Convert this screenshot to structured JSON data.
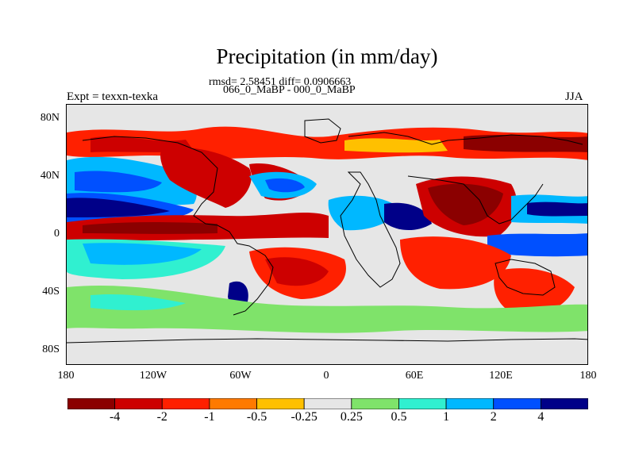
{
  "header": {
    "title": "Precipitation (in mm/day)",
    "stats": "rmsd= 2.58451  diff= 0.0906663",
    "comparison": "066_0_MaBP - 000_0_MaBP",
    "experiment": "Expt = texxn-texka",
    "season": "JJA"
  },
  "map": {
    "lat_labels": [
      "80N",
      "40N",
      "0",
      "40S",
      "80S"
    ],
    "lon_labels": [
      "180",
      "120W",
      "60W",
      "0",
      "60E",
      "120E",
      "180"
    ]
  },
  "colorbar": {
    "labels": [
      "-4",
      "-2",
      "-1",
      "-0.5",
      "-0.25",
      "0.25",
      "0.5",
      "1",
      "2",
      "4"
    ],
    "colors": [
      "#8b0000",
      "#cd0000",
      "#ff2000",
      "#ff7a00",
      "#ffc000",
      "#e6e6e6",
      "#7fe36a",
      "#30f0d0",
      "#00b8ff",
      "#0050ff",
      "#000088"
    ]
  },
  "palette": {
    "dark_red": "#8b0000",
    "red": "#cd0000",
    "orange_red": "#ff2000",
    "orange": "#ff7a00",
    "yellow": "#ffc000",
    "neutral": "#e6e6e6",
    "green": "#7fe36a",
    "cyan": "#30f0d0",
    "light_blue": "#00b8ff",
    "blue": "#0050ff",
    "navy": "#000088"
  }
}
